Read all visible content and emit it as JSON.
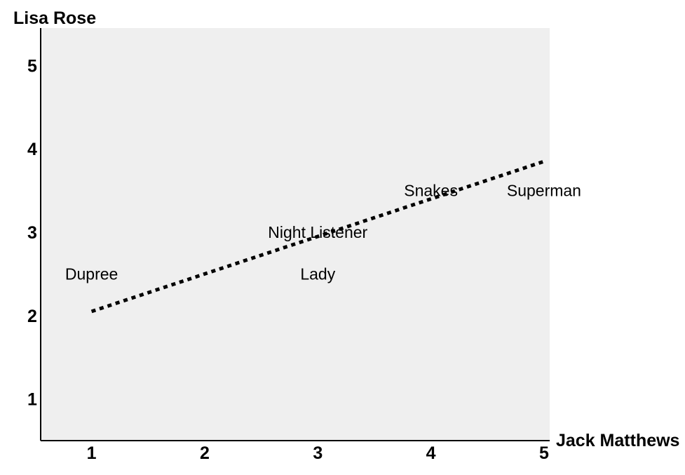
{
  "chart_data": {
    "type": "scatter",
    "title": "",
    "xlabel": "Jack Matthews",
    "ylabel": "Lisa Rose",
    "xlim": [
      0.55,
      5.05
    ],
    "ylim": [
      0.5,
      5.45
    ],
    "xticks": [
      "1",
      "2",
      "3",
      "4",
      "5"
    ],
    "yticks": [
      "1",
      "2",
      "3",
      "4",
      "5"
    ],
    "grid": false,
    "points": [
      {
        "label": "Dupree",
        "x": 1.0,
        "y": 2.5
      },
      {
        "label": "Night Listener",
        "x": 3.0,
        "y": 3.0
      },
      {
        "label": "Lady",
        "x": 3.0,
        "y": 2.5
      },
      {
        "label": "Snakes",
        "x": 4.0,
        "y": 3.5
      },
      {
        "label": "Superman",
        "x": 5.0,
        "y": 3.5
      }
    ],
    "trendline": {
      "style": "dotted",
      "x": [
        1.0,
        5.0
      ],
      "y": [
        2.05,
        3.85
      ]
    },
    "colors": {
      "plot_background": "#efefef",
      "axis": "#000000",
      "trendline": "#000000"
    }
  }
}
